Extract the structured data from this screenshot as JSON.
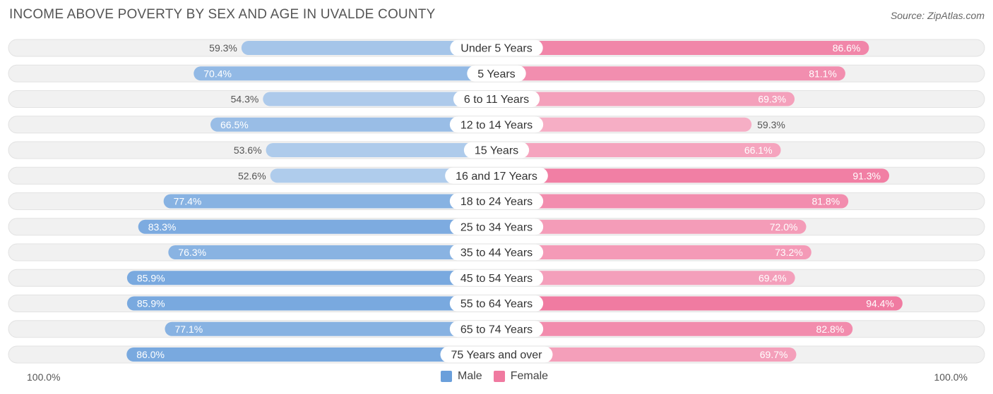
{
  "title": "INCOME ABOVE POVERTY BY SEX AND AGE IN UVALDE COUNTY",
  "source": "Source: ZipAtlas.com",
  "colors": {
    "male": "#6a9fdb",
    "female": "#f07aa0",
    "row_bg": "#f1f1f1"
  },
  "legend": {
    "male_label": "Male",
    "female_label": "Female"
  },
  "axis": {
    "left_label": "100.0%",
    "right_label": "100.0%"
  },
  "chart_data": {
    "type": "bar",
    "orientation": "horizontal-diverging",
    "title": "INCOME ABOVE POVERTY BY SEX AND AGE IN UVALDE COUNTY",
    "xlim": [
      0,
      100
    ],
    "categories": [
      "Under 5 Years",
      "5 Years",
      "6 to 11 Years",
      "12 to 14 Years",
      "15 Years",
      "16 and 17 Years",
      "18 to 24 Years",
      "25 to 34 Years",
      "35 to 44 Years",
      "45 to 54 Years",
      "55 to 64 Years",
      "65 to 74 Years",
      "75 Years and over"
    ],
    "series": [
      {
        "name": "Male",
        "values": [
          59.3,
          70.4,
          54.3,
          66.5,
          53.6,
          52.6,
          77.4,
          83.3,
          76.3,
          85.9,
          85.9,
          77.1,
          86.0
        ],
        "labels": [
          "59.3%",
          "70.4%",
          "54.3%",
          "66.5%",
          "53.6%",
          "52.6%",
          "77.4%",
          "83.3%",
          "76.3%",
          "85.9%",
          "85.9%",
          "77.1%",
          "86.0%"
        ]
      },
      {
        "name": "Female",
        "values": [
          86.6,
          81.1,
          69.3,
          59.3,
          66.1,
          91.3,
          81.8,
          72.0,
          73.2,
          69.4,
          94.4,
          82.8,
          69.7
        ],
        "labels": [
          "86.6%",
          "81.1%",
          "69.3%",
          "59.3%",
          "66.1%",
          "91.3%",
          "81.8%",
          "72.0%",
          "73.2%",
          "69.4%",
          "94.4%",
          "82.8%",
          "69.7%"
        ]
      }
    ]
  }
}
